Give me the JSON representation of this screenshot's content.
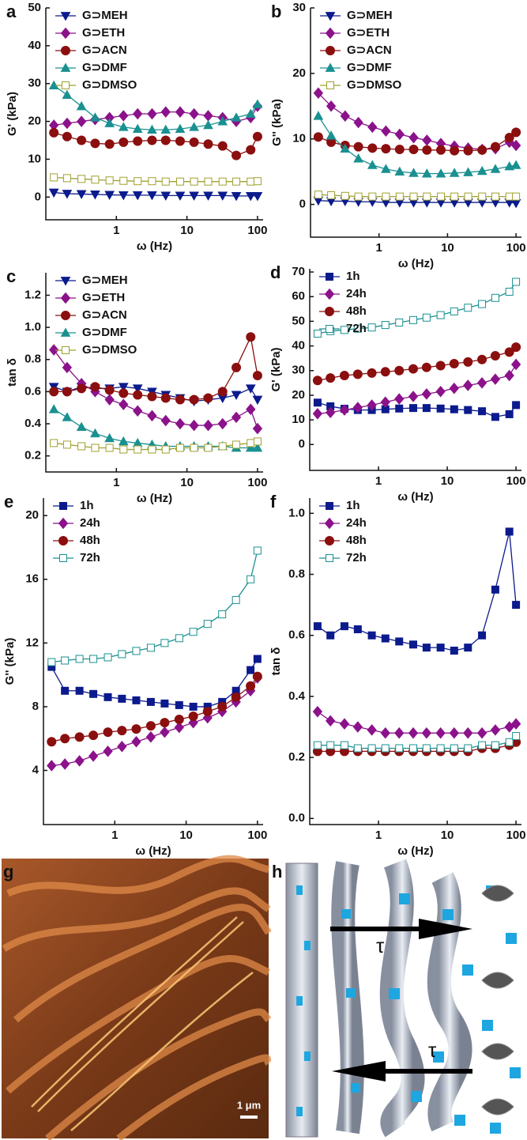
{
  "chart_data": [
    {
      "type": "line",
      "panel": "a",
      "y_label": "G' (kPa)",
      "x_label": "ω (Hz)",
      "xscale": "log",
      "x": [
        0.13,
        0.2,
        0.32,
        0.5,
        0.8,
        1.26,
        2,
        3.2,
        5,
        8,
        12.6,
        20,
        32,
        50,
        80,
        100
      ],
      "xlim": [
        0.1,
        120
      ],
      "xticks": [
        1,
        10,
        100
      ],
      "ylim": [
        -6,
        50
      ],
      "yticks": [
        0,
        10,
        20,
        30,
        40,
        50
      ],
      "series": [
        {
          "name": "G⊃MEH",
          "color": "#0b1a8c",
          "marker": "triangle-down",
          "values": [
            1.2,
            0.9,
            0.8,
            0.7,
            0.6,
            0.5,
            0.5,
            0.5,
            0.4,
            0.4,
            0.4,
            0.4,
            0.4,
            0.3,
            0.3,
            0.3
          ]
        },
        {
          "name": "G⊃ETH",
          "color": "#8b128b",
          "marker": "diamond",
          "values": [
            19,
            19.5,
            20,
            20.5,
            21,
            21.5,
            22,
            22,
            22.5,
            22.5,
            22,
            21.5,
            21,
            20,
            21,
            24
          ]
        },
        {
          "name": "G⊃ACN",
          "color": "#8b0f0f",
          "marker": "circle",
          "values": [
            17,
            16,
            15,
            14.2,
            14,
            14.5,
            14.8,
            15,
            15,
            14.8,
            14.5,
            14,
            13.5,
            11,
            12.5,
            16
          ]
        },
        {
          "name": "G⊃DMF",
          "color": "#1a9090",
          "marker": "triangle-up",
          "values": [
            29.5,
            27,
            24,
            21,
            19.5,
            18.5,
            18,
            17.8,
            17.8,
            18,
            18.5,
            19,
            20,
            21,
            22,
            24.5
          ]
        },
        {
          "name": "G⊃DMSO",
          "color": "#a0a030",
          "marker": "square-open",
          "values": [
            5.2,
            5,
            4.8,
            4.6,
            4.4,
            4.3,
            4.2,
            4.2,
            4.1,
            4.1,
            4.1,
            4.1,
            4.1,
            4.1,
            4.1,
            4.2
          ]
        }
      ]
    },
    {
      "type": "line",
      "panel": "b",
      "y_label": "G'' (kPa)",
      "x_label": "ω (Hz)",
      "xscale": "log",
      "x": [
        0.13,
        0.2,
        0.32,
        0.5,
        0.8,
        1.26,
        2,
        3.2,
        5,
        8,
        12.6,
        20,
        32,
        50,
        80,
        100
      ],
      "xlim": [
        0.1,
        120
      ],
      "xticks": [
        1,
        10,
        100
      ],
      "ylim": [
        -5,
        30
      ],
      "yticks": [
        0,
        10,
        20,
        30
      ],
      "series": [
        {
          "name": "G⊃MEH",
          "color": "#0b1a8c",
          "marker": "triangle-down",
          "values": [
            0.6,
            0.5,
            0.5,
            0.4,
            0.4,
            0.3,
            0.3,
            0.3,
            0.3,
            0.3,
            0.3,
            0.3,
            0.3,
            0.3,
            0.3,
            0.2
          ]
        },
        {
          "name": "G⊃ETH",
          "color": "#8b128b",
          "marker": "diamond",
          "values": [
            17,
            15,
            13.5,
            12.5,
            11.8,
            11.2,
            10.7,
            10.2,
            9.8,
            9.3,
            8.9,
            8.6,
            8.4,
            8.5,
            9.5,
            9
          ]
        },
        {
          "name": "G⊃ACN",
          "color": "#8b0f0f",
          "marker": "circle",
          "values": [
            10.3,
            9.5,
            9,
            8.8,
            8.6,
            8.5,
            8.4,
            8.4,
            8.3,
            8.3,
            8.2,
            8.2,
            8.3,
            8.8,
            10.2,
            11
          ]
        },
        {
          "name": "G⊃DMF",
          "color": "#1a9090",
          "marker": "triangle-up",
          "values": [
            13.5,
            10.5,
            8.5,
            7,
            6,
            5.4,
            5,
            4.8,
            4.7,
            4.7,
            4.8,
            4.9,
            5.1,
            5.4,
            5.8,
            6
          ]
        },
        {
          "name": "G⊃DMSO",
          "color": "#a0a030",
          "marker": "square-open",
          "values": [
            1.5,
            1.4,
            1.3,
            1.2,
            1.2,
            1.2,
            1.2,
            1.2,
            1.2,
            1.2,
            1.2,
            1.2,
            1.2,
            1.2,
            1.2,
            1.2
          ]
        }
      ]
    },
    {
      "type": "line",
      "panel": "c",
      "y_label": "tan δ",
      "x_label": "ω (Hz)",
      "xscale": "log",
      "x": [
        0.13,
        0.2,
        0.32,
        0.5,
        0.8,
        1.26,
        2,
        3.2,
        5,
        8,
        12.6,
        20,
        32,
        50,
        80,
        100
      ],
      "xlim": [
        0.1,
        120
      ],
      "xticks": [
        1,
        10,
        100
      ],
      "ylim": [
        0.1,
        1.34
      ],
      "yticks": [
        0.2,
        0.4,
        0.6,
        0.8,
        {
          "value": 1,
          "label": "1.0"
        },
        1.2
      ],
      "series": [
        {
          "name": "G⊃MEH",
          "color": "#0b1a8c",
          "marker": "triangle-down",
          "values": [
            0.63,
            0.6,
            0.63,
            0.62,
            0.62,
            0.63,
            0.62,
            0.6,
            0.58,
            0.56,
            0.54,
            0.55,
            0.56,
            0.58,
            0.62,
            0.55
          ]
        },
        {
          "name": "G⊃ETH",
          "color": "#8b128b",
          "marker": "diamond",
          "values": [
            0.86,
            0.75,
            0.65,
            0.6,
            0.55,
            0.52,
            0.48,
            0.45,
            0.42,
            0.4,
            0.39,
            0.39,
            0.4,
            0.44,
            0.49,
            0.37
          ]
        },
        {
          "name": "G⊃ACN",
          "color": "#8b0f0f",
          "marker": "circle",
          "values": [
            0.6,
            0.6,
            0.62,
            0.63,
            0.61,
            0.59,
            0.58,
            0.57,
            0.56,
            0.55,
            0.55,
            0.56,
            0.6,
            0.75,
            0.94,
            0.7
          ]
        },
        {
          "name": "G⊃DMF",
          "color": "#1a9090",
          "marker": "triangle-up",
          "values": [
            0.49,
            0.44,
            0.38,
            0.34,
            0.31,
            0.29,
            0.28,
            0.27,
            0.26,
            0.26,
            0.26,
            0.26,
            0.26,
            0.25,
            0.25,
            0.25
          ]
        },
        {
          "name": "G⊃DMSO",
          "color": "#a0a030",
          "marker": "square-open",
          "values": [
            0.28,
            0.27,
            0.26,
            0.25,
            0.25,
            0.24,
            0.24,
            0.24,
            0.24,
            0.25,
            0.25,
            0.25,
            0.26,
            0.27,
            0.28,
            0.29
          ]
        }
      ]
    },
    {
      "type": "line",
      "panel": "d",
      "y_label": "G' (kPa)",
      "x_label": "ω (Hz)",
      "xscale": "log",
      "x": [
        0.13,
        0.2,
        0.32,
        0.5,
        0.8,
        1.26,
        2,
        3.2,
        5,
        8,
        12.6,
        20,
        32,
        50,
        80,
        100
      ],
      "xlim": [
        0.1,
        120
      ],
      "xticks": [
        1,
        10,
        100
      ],
      "ylim": [
        -10.5,
        71.3
      ],
      "yticks": [
        0,
        10,
        20,
        30,
        40,
        50,
        60,
        70
      ],
      "series": [
        {
          "name": "1h",
          "color": "#0b1a8c",
          "marker": "square",
          "values": [
            17,
            15.5,
            14.5,
            14,
            14,
            14.3,
            14.6,
            14.8,
            14.8,
            14.6,
            14.3,
            14,
            13.5,
            11.2,
            12.3,
            16
          ]
        },
        {
          "name": "24h",
          "color": "#8b128b",
          "marker": "diamond",
          "values": [
            12.5,
            13,
            14,
            15,
            16,
            17.2,
            18.5,
            19.5,
            20.5,
            21.5,
            22.8,
            24,
            25,
            26.5,
            28,
            32.5
          ]
        },
        {
          "name": "48h",
          "color": "#8b0f0f",
          "marker": "circle",
          "values": [
            26,
            27,
            28,
            28.5,
            29,
            29.5,
            30,
            30.7,
            31.3,
            32,
            32.8,
            33.5,
            34.5,
            36,
            37.5,
            39.5
          ]
        },
        {
          "name": "72h",
          "color": "#1a9090",
          "marker": "square-open",
          "values": [
            45,
            46,
            46.5,
            47,
            47.5,
            48.5,
            49.5,
            50.5,
            51.5,
            52.5,
            54,
            55.5,
            57,
            59.5,
            62,
            66
          ]
        }
      ]
    },
    {
      "type": "line",
      "panel": "e",
      "y_label": "G'' (kPa)",
      "x_label": "ω (Hz)",
      "xscale": "log",
      "x": [
        0.13,
        0.2,
        0.32,
        0.5,
        0.8,
        1.26,
        2,
        3.2,
        5,
        8,
        12.6,
        20,
        32,
        50,
        80,
        100
      ],
      "xlim": [
        0.1,
        120
      ],
      "xticks": [
        1,
        10,
        100
      ],
      "ylim": [
        0.6,
        21.1
      ],
      "yticks": [
        4,
        8,
        12,
        16,
        20
      ],
      "series": [
        {
          "name": "1h",
          "color": "#0b1a8c",
          "marker": "square",
          "values": [
            10.5,
            9,
            9,
            8.8,
            8.6,
            8.5,
            8.4,
            8.3,
            8.2,
            8.1,
            8,
            8,
            8.3,
            9,
            10.3,
            11
          ]
        },
        {
          "name": "24h",
          "color": "#8b128b",
          "marker": "diamond",
          "values": [
            4.3,
            4.4,
            4.6,
            4.9,
            5.2,
            5.5,
            5.8,
            6.1,
            6.4,
            6.7,
            7,
            7.3,
            7.7,
            8.3,
            9,
            9.8
          ]
        },
        {
          "name": "48h",
          "color": "#8b0f0f",
          "marker": "circle",
          "values": [
            5.8,
            6,
            6.1,
            6.2,
            6.4,
            6.5,
            6.6,
            6.8,
            7,
            7.2,
            7.4,
            7.7,
            8,
            8.6,
            9.3,
            9.9
          ]
        },
        {
          "name": "72h",
          "color": "#1a9090",
          "marker": "square-open",
          "values": [
            10.8,
            10.9,
            11,
            11,
            11.1,
            11.3,
            11.5,
            11.7,
            12,
            12.3,
            12.7,
            13.2,
            13.8,
            14.7,
            16,
            17.8
          ]
        }
      ]
    },
    {
      "type": "line",
      "panel": "f",
      "y_label": "tan δ",
      "x_label": "ω (Hz)",
      "xscale": "log",
      "x": [
        0.13,
        0.2,
        0.32,
        0.5,
        0.8,
        1.26,
        2,
        3.2,
        5,
        8,
        12.6,
        20,
        32,
        50,
        80,
        100
      ],
      "xlim": [
        0.1,
        120
      ],
      "xticks": [
        1,
        10,
        100
      ],
      "ylim": [
        -0.02,
        1.05
      ],
      "yticks": [
        {
          "value": 0,
          "label": "0.0"
        },
        0.2,
        0.4,
        0.6,
        0.8,
        {
          "value": 1,
          "label": "1.0"
        }
      ],
      "series": [
        {
          "name": "1h",
          "color": "#0b1a8c",
          "marker": "square",
          "values": [
            0.63,
            0.6,
            0.63,
            0.62,
            0.6,
            0.59,
            0.58,
            0.57,
            0.56,
            0.56,
            0.55,
            0.56,
            0.6,
            0.75,
            0.94,
            0.7
          ]
        },
        {
          "name": "24h",
          "color": "#8b128b",
          "marker": "diamond",
          "values": [
            0.35,
            0.32,
            0.31,
            0.3,
            0.29,
            0.28,
            0.28,
            0.28,
            0.28,
            0.28,
            0.28,
            0.28,
            0.28,
            0.29,
            0.3,
            0.31
          ]
        },
        {
          "name": "48h",
          "color": "#8b0f0f",
          "marker": "circle",
          "values": [
            0.22,
            0.22,
            0.22,
            0.22,
            0.22,
            0.22,
            0.22,
            0.22,
            0.22,
            0.22,
            0.22,
            0.22,
            0.23,
            0.23,
            0.24,
            0.25
          ]
        },
        {
          "name": "72h",
          "color": "#1a9090",
          "marker": "square-open",
          "values": [
            0.24,
            0.24,
            0.24,
            0.23,
            0.23,
            0.23,
            0.23,
            0.23,
            0.23,
            0.23,
            0.23,
            0.23,
            0.24,
            0.24,
            0.25,
            0.27
          ]
        }
      ]
    }
  ],
  "images": {
    "g": {
      "panel": "g",
      "scale_bar": "1 μm"
    },
    "h": {
      "panel": "h",
      "tau": [
        "τ",
        "τ"
      ]
    }
  }
}
